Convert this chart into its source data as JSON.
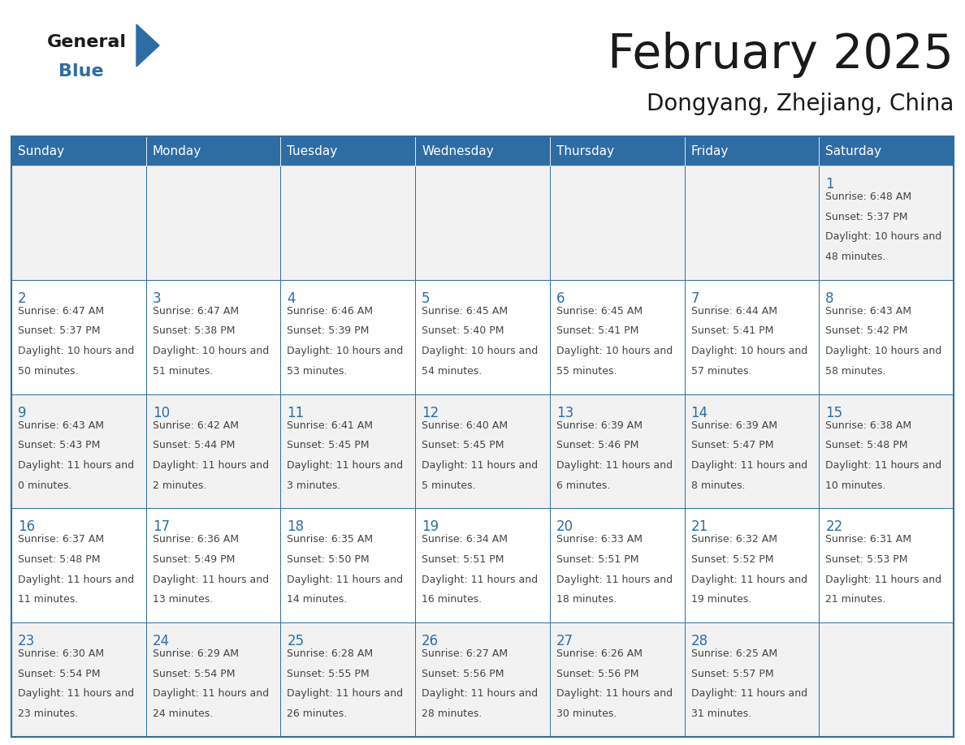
{
  "title": "February 2025",
  "subtitle": "Dongyang, Zhejiang, China",
  "days_of_week": [
    "Sunday",
    "Monday",
    "Tuesday",
    "Wednesday",
    "Thursday",
    "Friday",
    "Saturday"
  ],
  "header_bg": "#2E6DA4",
  "header_text": "#FFFFFF",
  "cell_bg_odd": "#F2F2F2",
  "cell_bg_even": "#FFFFFF",
  "border_color": "#2E6DA4",
  "day_num_color": "#2E6DA4",
  "text_color": "#444444",
  "title_color": "#1a1a1a",
  "subtitle_color": "#1a1a1a",
  "logo_general_color": "#1a1a1a",
  "logo_blue_color": "#2E6DA4",
  "calendar_data": [
    [
      null,
      null,
      null,
      null,
      null,
      null,
      {
        "day": 1,
        "sunrise": "6:48 AM",
        "sunset": "5:37 PM",
        "daylight": "10 hours and 48 minutes."
      }
    ],
    [
      {
        "day": 2,
        "sunrise": "6:47 AM",
        "sunset": "5:37 PM",
        "daylight": "10 hours and 50 minutes."
      },
      {
        "day": 3,
        "sunrise": "6:47 AM",
        "sunset": "5:38 PM",
        "daylight": "10 hours and 51 minutes."
      },
      {
        "day": 4,
        "sunrise": "6:46 AM",
        "sunset": "5:39 PM",
        "daylight": "10 hours and 53 minutes."
      },
      {
        "day": 5,
        "sunrise": "6:45 AM",
        "sunset": "5:40 PM",
        "daylight": "10 hours and 54 minutes."
      },
      {
        "day": 6,
        "sunrise": "6:45 AM",
        "sunset": "5:41 PM",
        "daylight": "10 hours and 55 minutes."
      },
      {
        "day": 7,
        "sunrise": "6:44 AM",
        "sunset": "5:41 PM",
        "daylight": "10 hours and 57 minutes."
      },
      {
        "day": 8,
        "sunrise": "6:43 AM",
        "sunset": "5:42 PM",
        "daylight": "10 hours and 58 minutes."
      }
    ],
    [
      {
        "day": 9,
        "sunrise": "6:43 AM",
        "sunset": "5:43 PM",
        "daylight": "11 hours and 0 minutes."
      },
      {
        "day": 10,
        "sunrise": "6:42 AM",
        "sunset": "5:44 PM",
        "daylight": "11 hours and 2 minutes."
      },
      {
        "day": 11,
        "sunrise": "6:41 AM",
        "sunset": "5:45 PM",
        "daylight": "11 hours and 3 minutes."
      },
      {
        "day": 12,
        "sunrise": "6:40 AM",
        "sunset": "5:45 PM",
        "daylight": "11 hours and 5 minutes."
      },
      {
        "day": 13,
        "sunrise": "6:39 AM",
        "sunset": "5:46 PM",
        "daylight": "11 hours and 6 minutes."
      },
      {
        "day": 14,
        "sunrise": "6:39 AM",
        "sunset": "5:47 PM",
        "daylight": "11 hours and 8 minutes."
      },
      {
        "day": 15,
        "sunrise": "6:38 AM",
        "sunset": "5:48 PM",
        "daylight": "11 hours and 10 minutes."
      }
    ],
    [
      {
        "day": 16,
        "sunrise": "6:37 AM",
        "sunset": "5:48 PM",
        "daylight": "11 hours and 11 minutes."
      },
      {
        "day": 17,
        "sunrise": "6:36 AM",
        "sunset": "5:49 PM",
        "daylight": "11 hours and 13 minutes."
      },
      {
        "day": 18,
        "sunrise": "6:35 AM",
        "sunset": "5:50 PM",
        "daylight": "11 hours and 14 minutes."
      },
      {
        "day": 19,
        "sunrise": "6:34 AM",
        "sunset": "5:51 PM",
        "daylight": "11 hours and 16 minutes."
      },
      {
        "day": 20,
        "sunrise": "6:33 AM",
        "sunset": "5:51 PM",
        "daylight": "11 hours and 18 minutes."
      },
      {
        "day": 21,
        "sunrise": "6:32 AM",
        "sunset": "5:52 PM",
        "daylight": "11 hours and 19 minutes."
      },
      {
        "day": 22,
        "sunrise": "6:31 AM",
        "sunset": "5:53 PM",
        "daylight": "11 hours and 21 minutes."
      }
    ],
    [
      {
        "day": 23,
        "sunrise": "6:30 AM",
        "sunset": "5:54 PM",
        "daylight": "11 hours and 23 minutes."
      },
      {
        "day": 24,
        "sunrise": "6:29 AM",
        "sunset": "5:54 PM",
        "daylight": "11 hours and 24 minutes."
      },
      {
        "day": 25,
        "sunrise": "6:28 AM",
        "sunset": "5:55 PM",
        "daylight": "11 hours and 26 minutes."
      },
      {
        "day": 26,
        "sunrise": "6:27 AM",
        "sunset": "5:56 PM",
        "daylight": "11 hours and 28 minutes."
      },
      {
        "day": 27,
        "sunrise": "6:26 AM",
        "sunset": "5:56 PM",
        "daylight": "11 hours and 30 minutes."
      },
      {
        "day": 28,
        "sunrise": "6:25 AM",
        "sunset": "5:57 PM",
        "daylight": "11 hours and 31 minutes."
      },
      null
    ]
  ],
  "figsize": [
    11.88,
    9.18
  ],
  "dpi": 100
}
